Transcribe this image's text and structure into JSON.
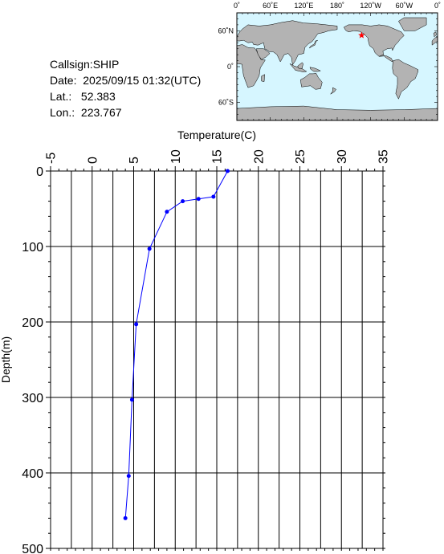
{
  "info": {
    "callsign": "Callsign:SHIP",
    "date": "Date:  2025/09/15 01:32(UTC)",
    "lat_label": "Lat.:",
    "lat_value": "52.383",
    "lon_label": "Lon.:",
    "lon_value": "223.767"
  },
  "map": {
    "lon_labels": [
      "0˚",
      "60˚E",
      "120˚E",
      "180˚",
      "120˚W",
      "60˚W",
      "0˚"
    ],
    "lat_labels": [
      "60˚N",
      "0˚",
      "60˚S"
    ],
    "ocean_color": "#d6f6ff",
    "land_color": "#b3b3b3",
    "marker": {
      "lon": 223.767,
      "lat": 52.383,
      "color": "#ff0000",
      "icon": "star-icon"
    }
  },
  "chart_data": {
    "type": "line",
    "xlabel": "Temperature(C)",
    "ylabel": "Depth(m)",
    "xlim": [
      -5,
      35
    ],
    "ylim": [
      0,
      500
    ],
    "y_inverted": true,
    "x_axis_position": "top",
    "grid": true,
    "x_ticks": [
      -5,
      0,
      5,
      10,
      15,
      20,
      25,
      30,
      35
    ],
    "y_ticks": [
      0,
      100,
      200,
      300,
      400,
      500
    ],
    "series": [
      {
        "color": "#0000ff",
        "points": [
          {
            "temp": 16.3,
            "depth": 0
          },
          {
            "temp": 14.6,
            "depth": 34
          },
          {
            "temp": 12.8,
            "depth": 37
          },
          {
            "temp": 10.9,
            "depth": 40
          },
          {
            "temp": 9.0,
            "depth": 54
          },
          {
            "temp": 6.9,
            "depth": 103
          },
          {
            "temp": 5.3,
            "depth": 203
          },
          {
            "temp": 4.8,
            "depth": 303
          },
          {
            "temp": 4.4,
            "depth": 404
          },
          {
            "temp": 4.0,
            "depth": 460
          }
        ]
      }
    ]
  }
}
